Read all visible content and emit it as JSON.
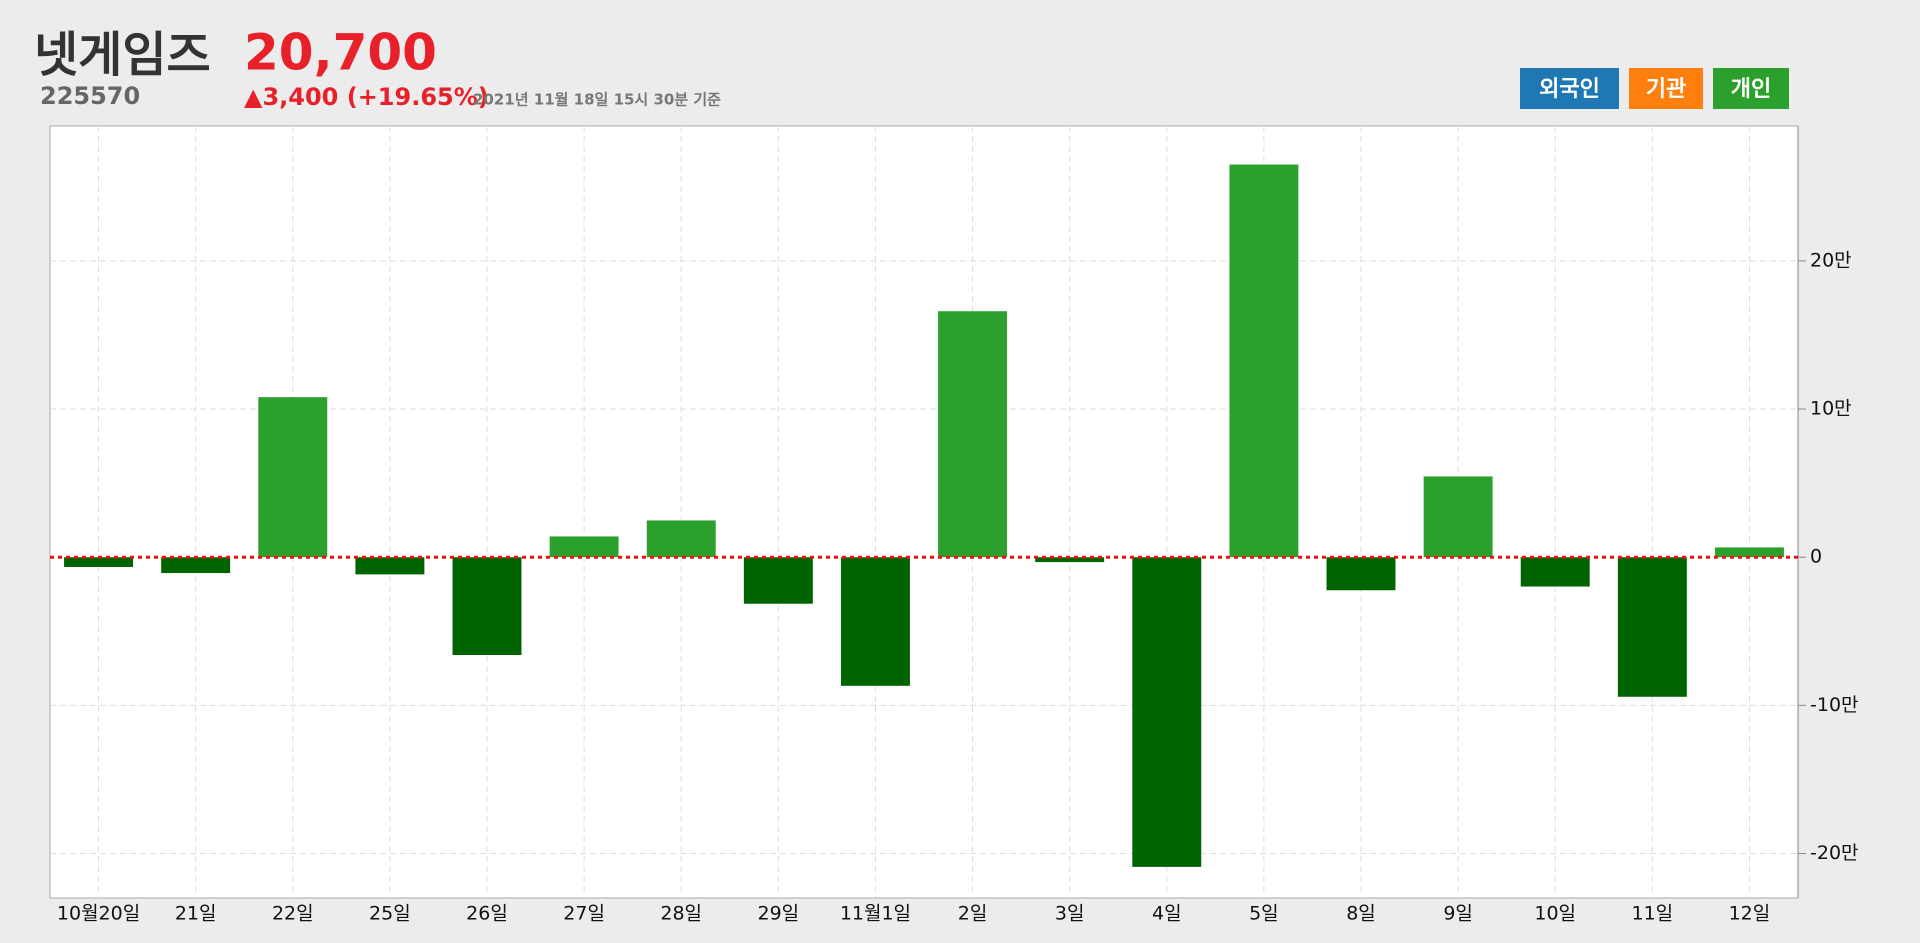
{
  "header": {
    "title": "넷게임즈",
    "code": "225570",
    "price": "20,700",
    "change": "▲3,400 (+19.65%)",
    "timestamp": "2021년 11월 18일 15시 30분 기준",
    "buttons": [
      {
        "label": "외국인",
        "color": "#1f77b4"
      },
      {
        "label": "기관",
        "color": "#ff7f0e"
      },
      {
        "label": "개인",
        "color": "#2ca02c"
      }
    ]
  },
  "chart_data": {
    "type": "bar",
    "categories": [
      "10월20일",
      "21일",
      "22일",
      "25일",
      "26일",
      "27일",
      "28일",
      "29일",
      "11월1일",
      "2일",
      "3일",
      "4일",
      "5일",
      "8일",
      "9일",
      "10일",
      "11일",
      "12일"
    ],
    "values": [
      -6600,
      -10700,
      108000,
      -11600,
      -66000,
      14000,
      24800,
      -31400,
      -86800,
      166000,
      -3300,
      -209000,
      265000,
      -22300,
      54500,
      -19800,
      -94200,
      6600
    ],
    "positive_color": "#2ca02c",
    "negative_color": "#006400",
    "zero_line_color": "#ee1111",
    "ylim": [
      -230000,
      291000
    ],
    "yticks": [
      {
        "value": -200000,
        "label": "-20만"
      },
      {
        "value": -100000,
        "label": "-10만"
      },
      0,
      {
        "value": 100000,
        "label": "10만"
      },
      {
        "value": 200000,
        "label": "20만"
      }
    ],
    "grid": true
  }
}
